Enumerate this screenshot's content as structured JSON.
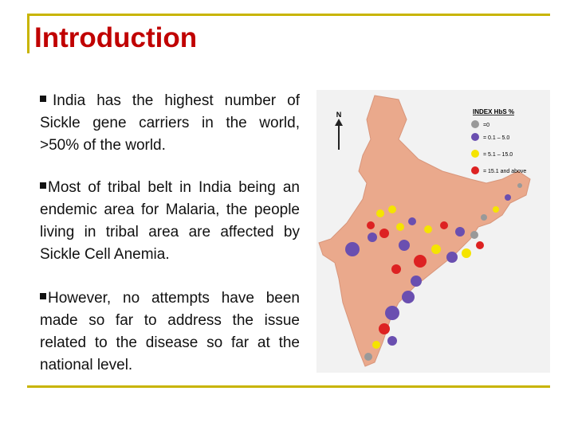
{
  "header": {
    "title": "Introduction"
  },
  "bullets": [
    "India has the highest number of Sickle gene carriers in the world, >50% of the world.",
    "Most of tribal belt in India being an endemic area for Malaria, the people living in tribal area are affected by Sickle Cell Anemia.",
    "However, no attempts have been made so far to address the issue related to the disease so far at the national level."
  ],
  "map": {
    "north_label": "N",
    "legend": {
      "title": "INDEX HbS %",
      "items": [
        "=0",
        "= 0.1 – 5.0",
        "= 5.1 – 15.0",
        "= 15.1 and above"
      ]
    }
  }
}
